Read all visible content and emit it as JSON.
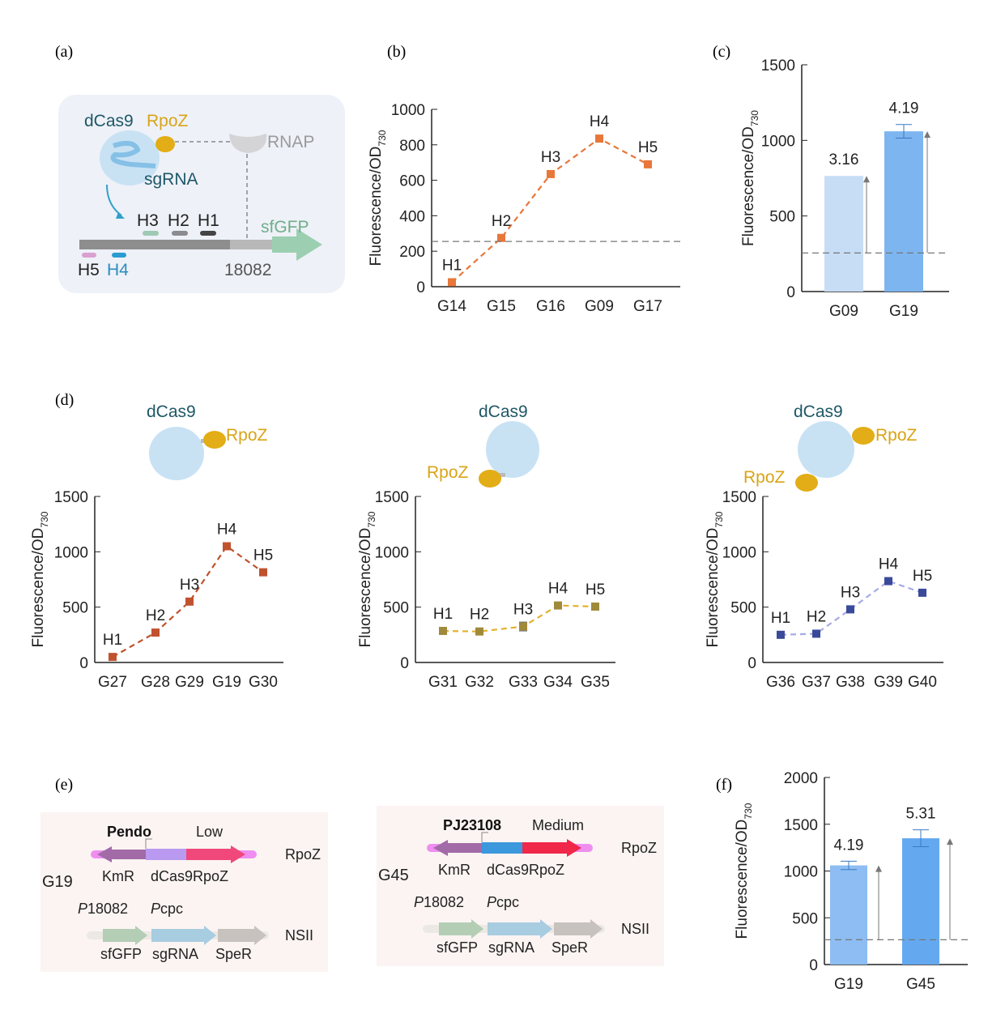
{
  "panels": {
    "a": "(a)",
    "b": "(b)",
    "c": "(c)",
    "d": "(d)",
    "e": "(e)",
    "f": "(f)"
  },
  "diagram_a": {
    "dcas9": "dCas9",
    "rpoz": "RpoZ",
    "rnap": "RNAP",
    "sgrna": "sgRNA",
    "h3": "H3",
    "h2": "H2",
    "h1": "H1",
    "h5": "H5",
    "h4": "H4",
    "promoter": "18082",
    "reporter": "sfGFP"
  },
  "diagram_d": {
    "dcas9": "dCas9",
    "rpoz": "RpoZ"
  },
  "diagram_e": {
    "left": {
      "strain": "G19",
      "promoter": "Pendo",
      "level": "Low",
      "locus1": "RpoZ",
      "genes1": [
        "KmR",
        "dCas9",
        "RpoZ"
      ],
      "p1": "P",
      "p1rest": "18082",
      "p2": "P",
      "p2rest": "cpc",
      "genes2": [
        "sfGFP",
        "sgRNA",
        "SpeR"
      ],
      "locus2": "NSII"
    },
    "right": {
      "strain": "G45",
      "promoter": "PJ23108",
      "level": "Medium",
      "locus1": "RpoZ",
      "genes1": [
        "KmR",
        "dCas9",
        "RpoZ"
      ],
      "p1": "P",
      "p1rest": "18082",
      "p2": "P",
      "p2rest": "cpc",
      "genes2": [
        "sfGFP",
        "sgRNA",
        "SpeR"
      ],
      "locus2": "NSII"
    }
  },
  "chart_data": [
    {
      "id": "b",
      "type": "line",
      "ylabel": "Fluorescence/OD",
      "ylabel_sub": "730",
      "categories": [
        "G14",
        "G15",
        "G16",
        "G09",
        "G17"
      ],
      "values": [
        25,
        275,
        635,
        835,
        690
      ],
      "point_labels": [
        "H1",
        "H2",
        "H3",
        "H4",
        "H5"
      ],
      "ylim": [
        0,
        1000
      ],
      "yticks": [
        "0",
        "200",
        "400",
        "600",
        "800",
        "1000"
      ],
      "threshold": 255,
      "color": "#e8773a",
      "line_style": "dashed"
    },
    {
      "id": "c",
      "type": "bar",
      "ylabel": "Fluorescence/OD",
      "ylabel_sub": "730",
      "categories": [
        "G09",
        "G19"
      ],
      "values": [
        765,
        1060
      ],
      "errors": [
        0,
        45
      ],
      "bar_labels": [
        "3.16",
        "4.19"
      ],
      "ylim": [
        0,
        1500
      ],
      "yticks": [
        "0",
        "500",
        "1000",
        "1500"
      ],
      "threshold": 255,
      "colors": [
        "#c6ddf5",
        "#7db5f0"
      ]
    },
    {
      "id": "d1",
      "type": "line",
      "ylabel": "Fluorescence/OD",
      "ylabel_sub": "730",
      "categories": [
        "G27",
        "G28",
        "G29",
        "G19",
        "G30"
      ],
      "values": [
        50,
        270,
        550,
        1050,
        815
      ],
      "point_labels": [
        "H1",
        "H2",
        "H3",
        "H4",
        "H5"
      ],
      "ylim": [
        0,
        1500
      ],
      "yticks": [
        "0",
        "500",
        "1000",
        "1500"
      ],
      "color": "#c0522e",
      "line_style": "dashed"
    },
    {
      "id": "d2",
      "type": "line",
      "ylabel": "Fluorescence/OD",
      "ylabel_sub": "730",
      "categories": [
        "G31",
        "G32",
        "G33",
        "G34",
        "G35"
      ],
      "values": [
        285,
        280,
        325,
        515,
        505
      ],
      "errors": [
        0,
        0,
        40,
        0,
        0
      ],
      "point_labels": [
        "H1",
        "H2",
        "H3",
        "H4",
        "H5"
      ],
      "ylim": [
        0,
        1500
      ],
      "yticks": [
        "0",
        "500",
        "1000",
        "1500"
      ],
      "color": "#e2b22e",
      "marker_color": "#a08a3a",
      "line_style": "dashed"
    },
    {
      "id": "d3",
      "type": "line",
      "ylabel": "Fluorescence/OD",
      "ylabel_sub": "730",
      "categories": [
        "G36",
        "G37",
        "G38",
        "G39",
        "G40"
      ],
      "values": [
        250,
        260,
        480,
        735,
        630
      ],
      "point_labels": [
        "H1",
        "H2",
        "H3",
        "H4",
        "H5"
      ],
      "ylim": [
        0,
        1500
      ],
      "yticks": [
        "0",
        "500",
        "1000",
        "1500"
      ],
      "color": "#a6aae6",
      "marker_color": "#3a4a9a",
      "line_style": "dashed"
    },
    {
      "id": "f",
      "type": "bar",
      "ylabel": "Fluorescence/OD",
      "ylabel_sub": "730",
      "categories": [
        "G19",
        "G45"
      ],
      "values": [
        1060,
        1350
      ],
      "errors": [
        45,
        90
      ],
      "bar_labels": [
        "4.19",
        "5.31"
      ],
      "ylim": [
        0,
        2000
      ],
      "yticks": [
        "0",
        "500",
        "1000",
        "1500",
        "2000"
      ],
      "threshold": 265,
      "colors": [
        "#8dbdf2",
        "#64a9f0"
      ]
    }
  ]
}
